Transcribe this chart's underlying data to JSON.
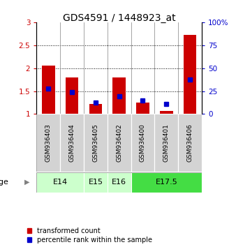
{
  "title": "GDS4591 / 1448923_at",
  "samples": [
    "GSM936403",
    "GSM936404",
    "GSM936405",
    "GSM936402",
    "GSM936400",
    "GSM936401",
    "GSM936406"
  ],
  "red_values": [
    2.05,
    1.8,
    1.22,
    1.8,
    1.25,
    1.07,
    2.72
  ],
  "blue_values": [
    1.55,
    1.48,
    1.25,
    1.39,
    1.3,
    1.22,
    1.75
  ],
  "ylim_left": [
    1.0,
    3.0
  ],
  "ylim_right": [
    0,
    100
  ],
  "yticks_left": [
    1.0,
    1.5,
    2.0,
    2.5,
    3.0
  ],
  "yticks_right": [
    0,
    25,
    50,
    75,
    100
  ],
  "age_groups": [
    {
      "label": "E14",
      "start": 0,
      "end": 2,
      "color": "#ccffcc"
    },
    {
      "label": "E15",
      "start": 2,
      "end": 3,
      "color": "#ccffcc"
    },
    {
      "label": "E16",
      "start": 3,
      "end": 4,
      "color": "#ccffcc"
    },
    {
      "label": "E17.5",
      "start": 4,
      "end": 7,
      "color": "#44dd44"
    }
  ],
  "age_label": "age",
  "bar_color_red": "#cc0000",
  "bar_color_blue": "#0000cc",
  "bar_width": 0.55,
  "bg_color": "#d3d3d3",
  "plot_bg": "white",
  "legend_red": "transformed count",
  "legend_blue": "percentile rank within the sample",
  "title_fontsize": 10,
  "tick_fontsize": 7.5,
  "sample_fontsize": 6.5,
  "age_fontsize": 8,
  "legend_fontsize": 7
}
